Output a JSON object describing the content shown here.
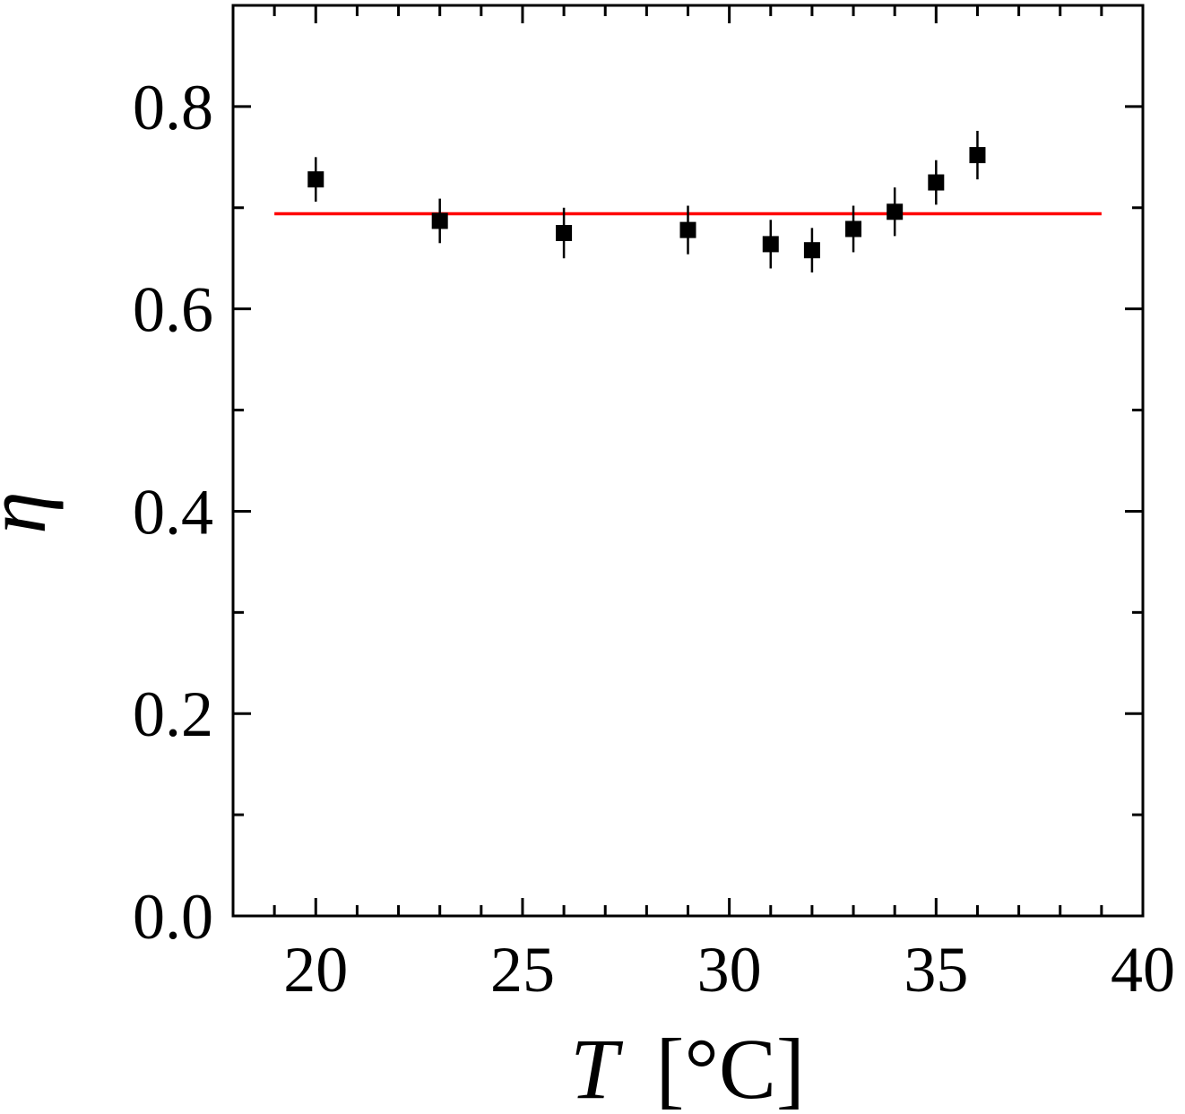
{
  "chart_data": {
    "type": "scatter",
    "title": "",
    "xlabel": {
      "symbol": "T",
      "unit": "[°C]"
    },
    "ylabel": "η",
    "xlim": [
      18,
      40
    ],
    "ylim": [
      0.0,
      0.9
    ],
    "x_major_ticks": [
      20,
      25,
      30,
      35,
      40
    ],
    "x_tick_labels": [
      "20",
      "25",
      "30",
      "35",
      "40"
    ],
    "x_minor_step": 1,
    "y_major_ticks": [
      0.0,
      0.2,
      0.4,
      0.6,
      0.8
    ],
    "y_tick_labels": [
      "0.0",
      "0.2",
      "0.4",
      "0.6",
      "0.8"
    ],
    "y_minor_step": 0.1,
    "grid": false,
    "legend": "none",
    "series": [
      {
        "marker": "square",
        "color": "#000000",
        "points": [
          {
            "x": 20,
            "y": 0.728,
            "err": 0.022
          },
          {
            "x": 23,
            "y": 0.687,
            "err": 0.022
          },
          {
            "x": 26,
            "y": 0.675,
            "err": 0.025
          },
          {
            "x": 29,
            "y": 0.678,
            "err": 0.024
          },
          {
            "x": 31,
            "y": 0.664,
            "err": 0.024
          },
          {
            "x": 32,
            "y": 0.658,
            "err": 0.022
          },
          {
            "x": 33,
            "y": 0.679,
            "err": 0.023
          },
          {
            "x": 34,
            "y": 0.696,
            "err": 0.024
          },
          {
            "x": 35,
            "y": 0.725,
            "err": 0.022
          },
          {
            "x": 36,
            "y": 0.752,
            "err": 0.024
          }
        ]
      }
    ],
    "reference_line": {
      "color": "#ff0000",
      "y": 0.694,
      "x_start": 19,
      "x_end": 39
    }
  }
}
